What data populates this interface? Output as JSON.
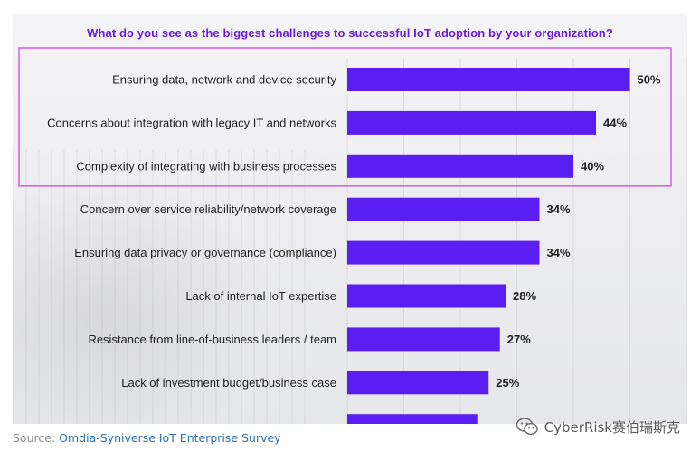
{
  "chart_data": {
    "type": "bar",
    "orientation": "horizontal",
    "title": "What do you see as the biggest challenges to successful IoT adoption by your organization?",
    "categories": [
      "Ensuring data, network and device security",
      "Concerns about integration with legacy IT and networks",
      "Complexity of integrating with business processes",
      "Concern over service reliability/network coverage",
      "Ensuring data privacy or governance (compliance)",
      "Lack of internal IoT expertise",
      "Resistance from line-of-business leaders / team",
      "Lack of investment budget/business case",
      ""
    ],
    "values": [
      50,
      44,
      40,
      34,
      34,
      28,
      27,
      25,
      23
    ],
    "value_labels": [
      "50%",
      "44%",
      "40%",
      "34%",
      "34%",
      "28%",
      "27%",
      "25%",
      ""
    ],
    "xlim": [
      0,
      60
    ],
    "grid": true,
    "highlighted_categories": [
      0,
      1,
      2
    ],
    "colors": {
      "bar": "#5a1ef2",
      "highlight_box": "#d35bf0",
      "title": "#6a1bdc"
    }
  },
  "footer": {
    "source_label": "Source:",
    "source_text": "Omdia-Syniverse IoT Enterprise Survey"
  },
  "watermark": {
    "icon": "wechat-icon",
    "text": "CyberRisk赛伯瑞斯克"
  }
}
